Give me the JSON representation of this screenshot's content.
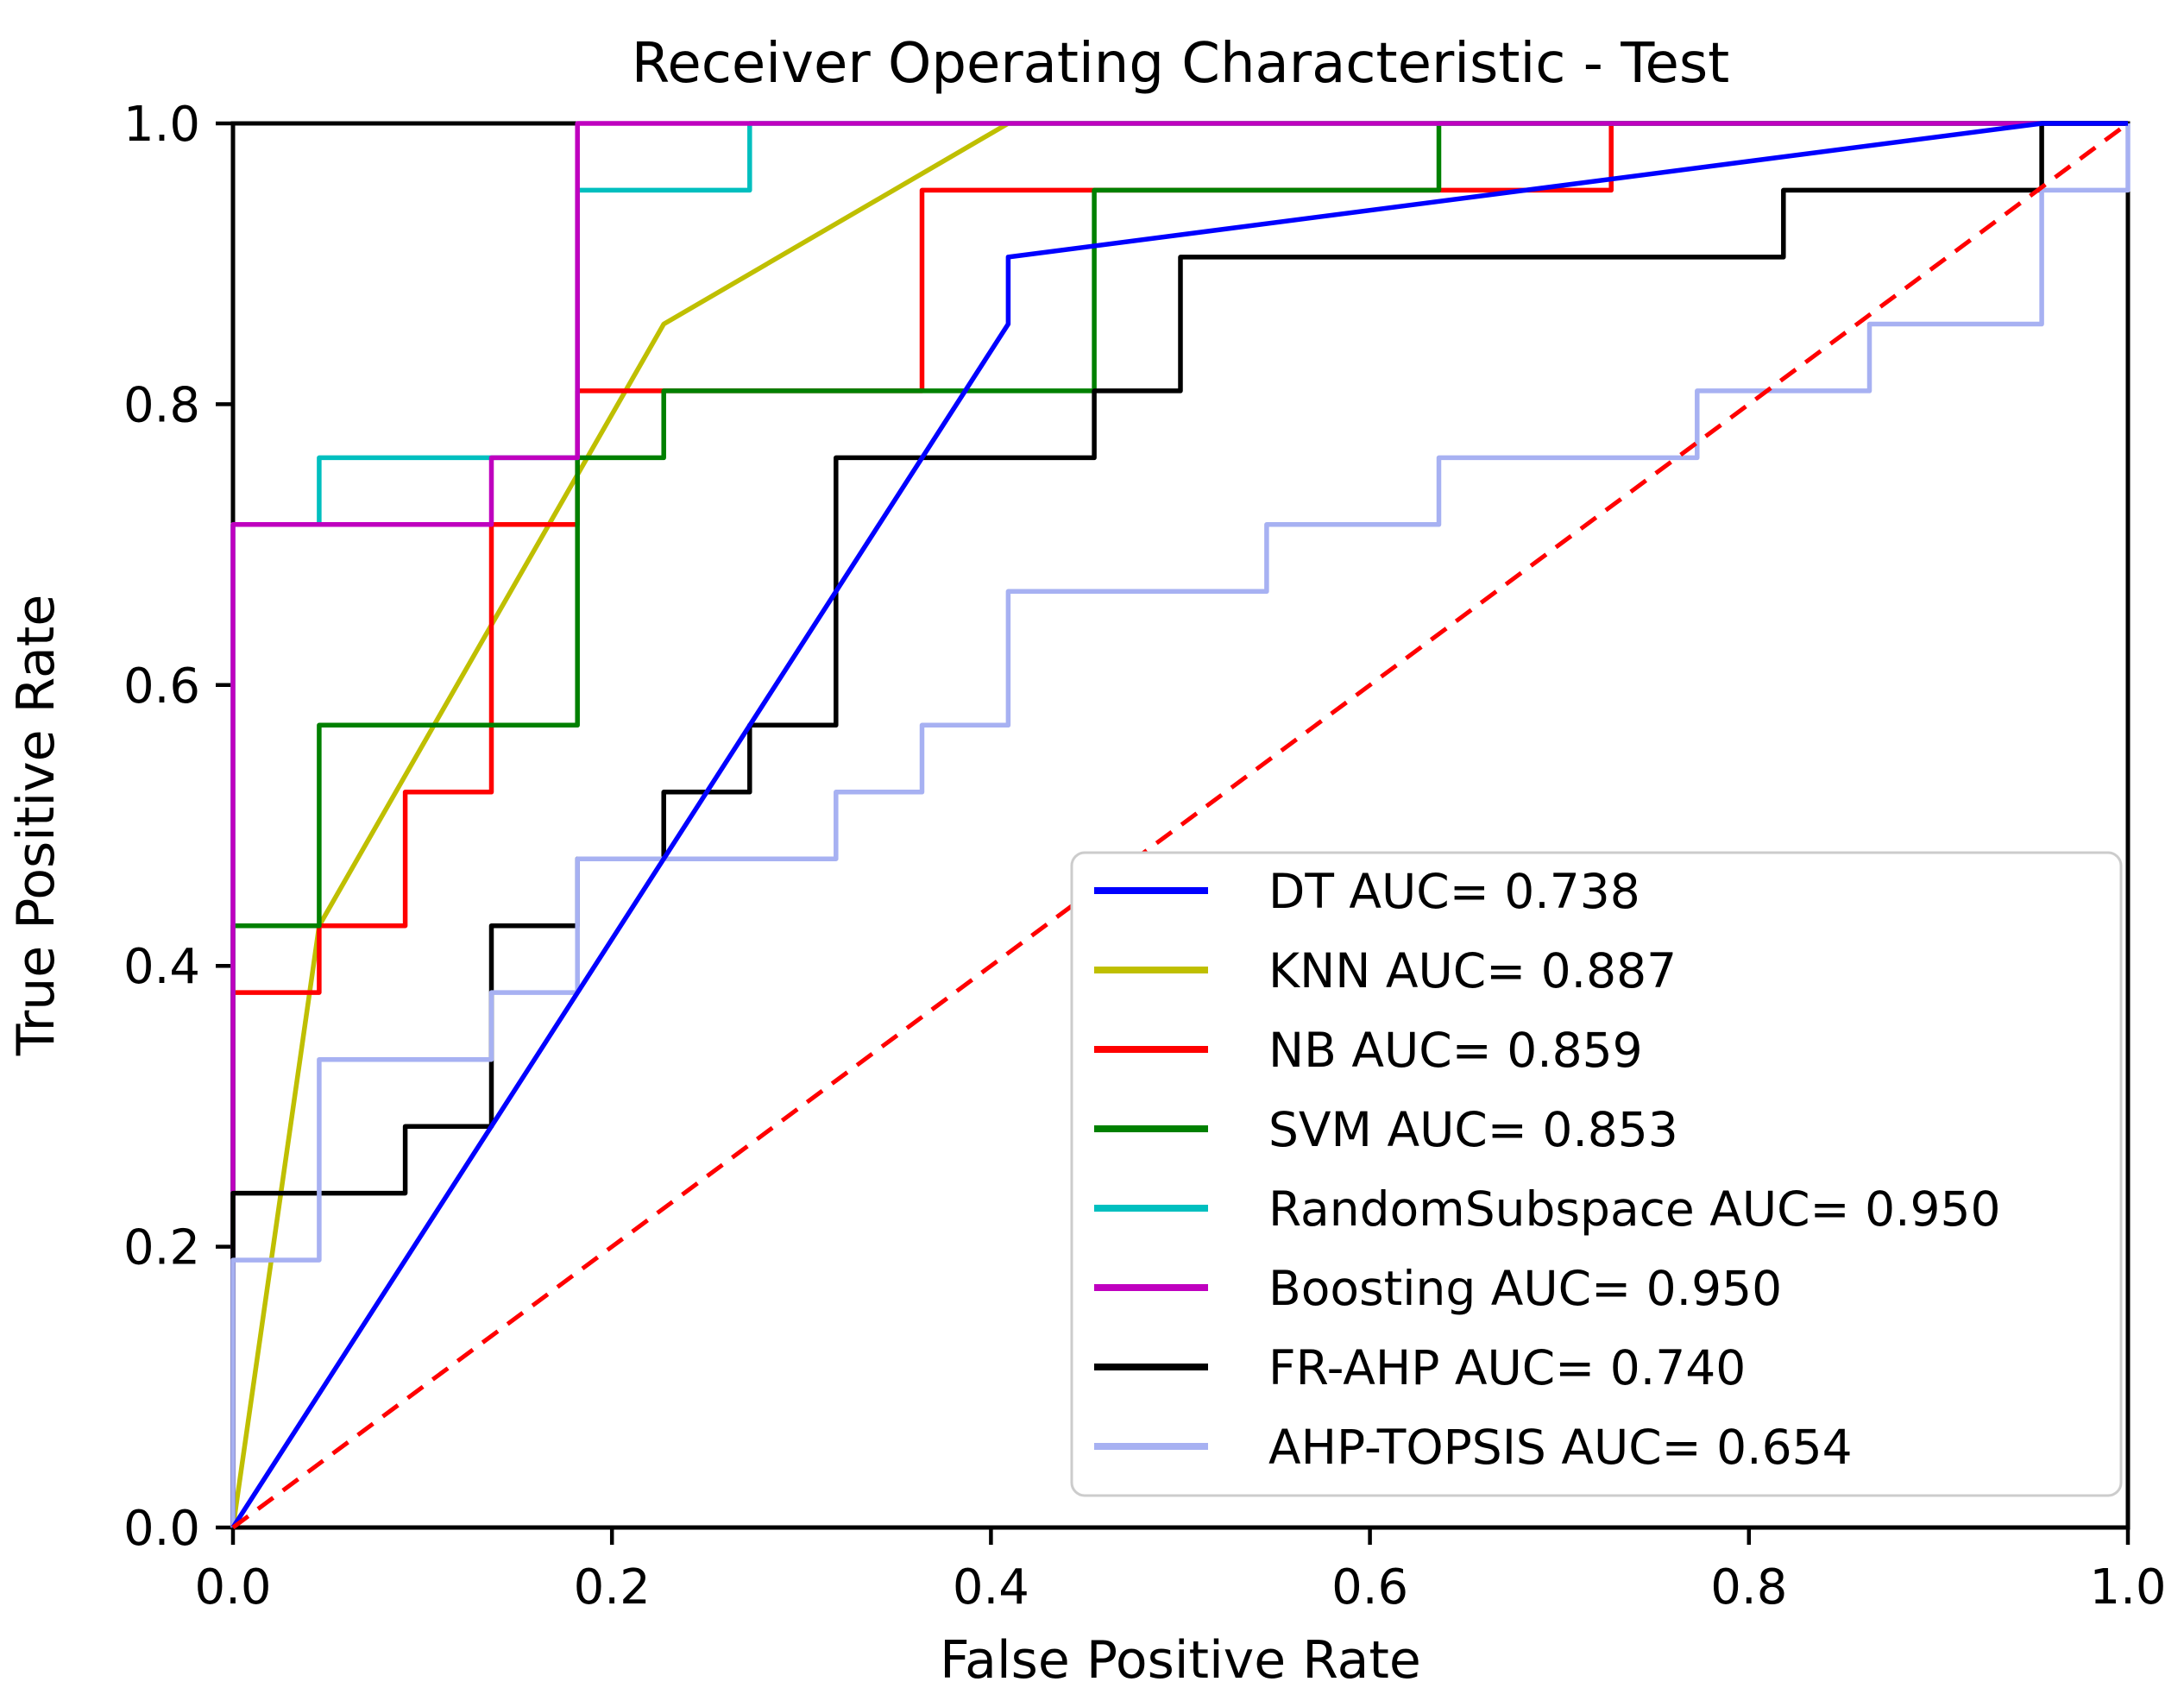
{
  "title": "Receiver Operating Characteristic - Test",
  "axes": {
    "xlabel": "False Positive Rate",
    "ylabel": "True Positive Rate",
    "x_ticks": [
      "0.0",
      "0.2",
      "0.4",
      "0.6",
      "0.8",
      "1.0"
    ],
    "y_ticks": [
      "0.0",
      "0.2",
      "0.4",
      "0.6",
      "0.8",
      "1.0"
    ]
  },
  "legend": {
    "items": [
      {
        "label": "DT AUC= 0.738",
        "color": "#0000ff"
      },
      {
        "label": "KNN AUC= 0.887",
        "color": "#bfbf00"
      },
      {
        "label": "NB AUC= 0.859",
        "color": "#ff0000"
      },
      {
        "label": "SVM AUC= 0.853",
        "color": "#008000"
      },
      {
        "label": "RandomSubspace AUC= 0.950",
        "color": "#00bfbf"
      },
      {
        "label": "Boosting AUC= 0.950",
        "color": "#bf00bf"
      },
      {
        "label": "FR-AHP AUC= 0.740",
        "color": "#000000"
      },
      {
        "label": "AHP-TOPSIS AUC= 0.654",
        "color": "#a7b1f2"
      }
    ]
  },
  "chart_data": {
    "type": "line",
    "title": "Receiver Operating Characteristic - Test",
    "xlabel": "False Positive Rate",
    "ylabel": "True Positive Rate",
    "xlim": [
      0.0,
      1.0
    ],
    "ylim": [
      0.0,
      1.0
    ],
    "grid": false,
    "legend_position": "lower right",
    "series": [
      {
        "name": "DT",
        "auc": 0.738,
        "color": "#0000ff",
        "points": [
          [
            0,
            0
          ],
          [
            0.4091,
            0.8571
          ],
          [
            0.4091,
            0.9048
          ],
          [
            0.9545,
            1
          ],
          [
            1,
            1
          ]
        ]
      },
      {
        "name": "KNN",
        "auc": 0.887,
        "color": "#bfbf00",
        "points": [
          [
            0,
            0
          ],
          [
            0.0455,
            0.4286
          ],
          [
            0.2273,
            0.8571
          ],
          [
            0.4091,
            1
          ],
          [
            1,
            1
          ]
        ]
      },
      {
        "name": "NB",
        "auc": 0.859,
        "color": "#ff0000",
        "points": [
          [
            0,
            0
          ],
          [
            0,
            0.381
          ],
          [
            0.0455,
            0.381
          ],
          [
            0.0455,
            0.4286
          ],
          [
            0.0909,
            0.4286
          ],
          [
            0.0909,
            0.5238
          ],
          [
            0.1364,
            0.5238
          ],
          [
            0.1364,
            0.7143
          ],
          [
            0.1818,
            0.7143
          ],
          [
            0.1818,
            0.8095
          ],
          [
            0.3636,
            0.8095
          ],
          [
            0.3636,
            0.9524
          ],
          [
            0.7273,
            0.9524
          ],
          [
            0.7273,
            1
          ],
          [
            1,
            1
          ]
        ]
      },
      {
        "name": "SVM",
        "auc": 0.853,
        "color": "#008000",
        "points": [
          [
            0,
            0
          ],
          [
            0,
            0.4286
          ],
          [
            0.0455,
            0.4286
          ],
          [
            0.0455,
            0.5714
          ],
          [
            0.1818,
            0.5714
          ],
          [
            0.1818,
            0.7619
          ],
          [
            0.2273,
            0.7619
          ],
          [
            0.2273,
            0.8095
          ],
          [
            0.4545,
            0.8095
          ],
          [
            0.4545,
            0.9524
          ],
          [
            0.6364,
            0.9524
          ],
          [
            0.6364,
            1
          ],
          [
            1,
            1
          ]
        ]
      },
      {
        "name": "RandomSubspace",
        "auc": 0.95,
        "color": "#00bfbf",
        "points": [
          [
            0,
            0
          ],
          [
            0,
            0.7143
          ],
          [
            0.0455,
            0.7143
          ],
          [
            0.0455,
            0.7619
          ],
          [
            0.1818,
            0.7619
          ],
          [
            0.1818,
            0.9524
          ],
          [
            0.2727,
            0.9524
          ],
          [
            0.2727,
            1
          ],
          [
            1,
            1
          ]
        ]
      },
      {
        "name": "Boosting",
        "auc": 0.95,
        "color": "#bf00bf",
        "points": [
          [
            0,
            0
          ],
          [
            0,
            0.7143
          ],
          [
            0.1364,
            0.7143
          ],
          [
            0.1364,
            0.7619
          ],
          [
            0.1818,
            0.7619
          ],
          [
            0.1818,
            1
          ],
          [
            1,
            1
          ]
        ]
      },
      {
        "name": "FR-AHP",
        "auc": 0.74,
        "color": "#000000",
        "points": [
          [
            0,
            0
          ],
          [
            0,
            0.2381
          ],
          [
            0.0909,
            0.2381
          ],
          [
            0.0909,
            0.2857
          ],
          [
            0.1364,
            0.2857
          ],
          [
            0.1364,
            0.4286
          ],
          [
            0.1818,
            0.4286
          ],
          [
            0.1818,
            0.4762
          ],
          [
            0.2273,
            0.4762
          ],
          [
            0.2273,
            0.5238
          ],
          [
            0.2727,
            0.5238
          ],
          [
            0.2727,
            0.5714
          ],
          [
            0.3182,
            0.5714
          ],
          [
            0.3182,
            0.7619
          ],
          [
            0.4545,
            0.7619
          ],
          [
            0.4545,
            0.8095
          ],
          [
            0.5,
            0.8095
          ],
          [
            0.5,
            0.9048
          ],
          [
            0.8182,
            0.9048
          ],
          [
            0.8182,
            0.9524
          ],
          [
            0.9545,
            0.9524
          ],
          [
            0.9545,
            1
          ],
          [
            1,
            1
          ]
        ]
      },
      {
        "name": "AHP-TOPSIS",
        "auc": 0.654,
        "color": "#a7b1f2",
        "points": [
          [
            0,
            0
          ],
          [
            0,
            0.1905
          ],
          [
            0.0455,
            0.1905
          ],
          [
            0.0455,
            0.3333
          ],
          [
            0.1364,
            0.3333
          ],
          [
            0.1364,
            0.381
          ],
          [
            0.1818,
            0.381
          ],
          [
            0.1818,
            0.4762
          ],
          [
            0.3182,
            0.4762
          ],
          [
            0.3182,
            0.5238
          ],
          [
            0.3636,
            0.5238
          ],
          [
            0.3636,
            0.5714
          ],
          [
            0.4091,
            0.5714
          ],
          [
            0.4091,
            0.6667
          ],
          [
            0.5455,
            0.6667
          ],
          [
            0.5455,
            0.7143
          ],
          [
            0.6364,
            0.7143
          ],
          [
            0.6364,
            0.7619
          ],
          [
            0.7727,
            0.7619
          ],
          [
            0.7727,
            0.8095
          ],
          [
            0.8636,
            0.8095
          ],
          [
            0.8636,
            0.8571
          ],
          [
            0.9545,
            0.8571
          ],
          [
            0.9545,
            0.9524
          ],
          [
            1,
            0.9524
          ],
          [
            1,
            1
          ]
        ]
      }
    ],
    "reference_line": {
      "name": "chance",
      "color": "#ff0000",
      "style": "dashed",
      "points": [
        [
          0,
          0
        ],
        [
          1,
          1
        ]
      ]
    }
  }
}
